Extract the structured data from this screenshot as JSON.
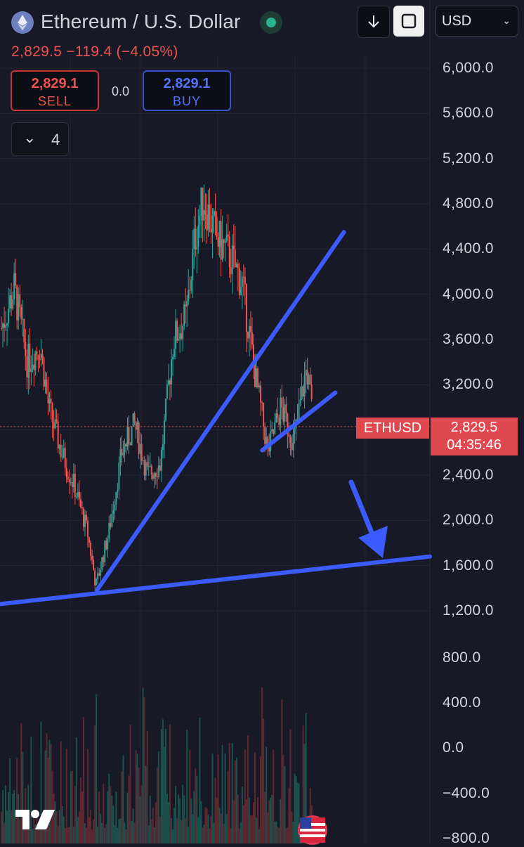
{
  "header": {
    "title": "Ethereum / U.S. Dollar",
    "currency": "USD",
    "last_price_line": "2,829.5  −119.4 (−4.05%)"
  },
  "trade": {
    "sell_price": "2,829.1",
    "sell_label": "SELL",
    "spread": "0.0",
    "buy_price": "2,829.1",
    "buy_label": "BUY"
  },
  "indicators": {
    "count": "4"
  },
  "price_axis": [
    "6,000.0",
    "5,600.0",
    "5,200.0",
    "4,800.0",
    "4,400.0",
    "4,000.0",
    "3,600.0",
    "3,200.0",
    "2,400.0",
    "2,000.0",
    "1,600.0",
    "1,200.0"
  ],
  "volume_axis": [
    "800.0",
    "400.0",
    "0.0",
    "−400.0",
    "−800.0"
  ],
  "symbol_tag": "ETHUSD",
  "price_tag": {
    "price": "2,829.5",
    "countdown": "04:35:46"
  },
  "colors": {
    "up": "#26a69a",
    "down": "#ef5350",
    "trendline": "#3b5bff",
    "background": "#171a26"
  },
  "icons": [
    "ethereum-logo-icon",
    "status-dot-icon",
    "download-icon",
    "fullscreen-icon",
    "chevron-down-icon",
    "tradingview-logo-icon",
    "us-flag-icon"
  ],
  "chart_data": {
    "type": "candlestick",
    "symbol": "ETHUSD",
    "ylim": [
      1000,
      6200
    ],
    "y_ticks": [
      1200,
      1600,
      2000,
      2400,
      3200,
      3600,
      4000,
      4400,
      4800,
      5200,
      5600,
      6000
    ],
    "last_price": 2829.5,
    "close_path": [
      {
        "t": 0,
        "p": 3700
      },
      {
        "t": 0.03,
        "p": 4050
      },
      {
        "t": 0.06,
        "p": 3400
      },
      {
        "t": 0.09,
        "p": 3550
      },
      {
        "t": 0.11,
        "p": 3000
      },
      {
        "t": 0.14,
        "p": 2600
      },
      {
        "t": 0.17,
        "p": 2300
      },
      {
        "t": 0.2,
        "p": 1900
      },
      {
        "t": 0.22,
        "p": 1420
      },
      {
        "t": 0.25,
        "p": 1900
      },
      {
        "t": 0.28,
        "p": 2600
      },
      {
        "t": 0.31,
        "p": 2850
      },
      {
        "t": 0.34,
        "p": 2400
      },
      {
        "t": 0.37,
        "p": 2500
      },
      {
        "t": 0.4,
        "p": 3600
      },
      {
        "t": 0.43,
        "p": 3800
      },
      {
        "t": 0.45,
        "p": 4500
      },
      {
        "t": 0.47,
        "p": 4850
      },
      {
        "t": 0.5,
        "p": 4500
      },
      {
        "t": 0.53,
        "p": 4350
      },
      {
        "t": 0.56,
        "p": 4100
      },
      {
        "t": 0.59,
        "p": 3300
      },
      {
        "t": 0.62,
        "p": 2600
      },
      {
        "t": 0.65,
        "p": 3000
      },
      {
        "t": 0.68,
        "p": 2700
      },
      {
        "t": 0.71,
        "p": 3350
      },
      {
        "t": 0.725,
        "p": 2900
      }
    ],
    "trendlines": [
      {
        "name": "rising-support",
        "from": {
          "t": 0.225,
          "p": 1380
        },
        "to": {
          "t": 0.8,
          "p": 4550
        }
      },
      {
        "name": "long-support",
        "from": {
          "t": 0,
          "p": 1260
        },
        "to": {
          "t": 1,
          "p": 1680
        }
      },
      {
        "name": "short-support",
        "from": {
          "t": 0.61,
          "p": 2620
        },
        "to": {
          "t": 0.78,
          "p": 3130
        }
      }
    ]
  }
}
